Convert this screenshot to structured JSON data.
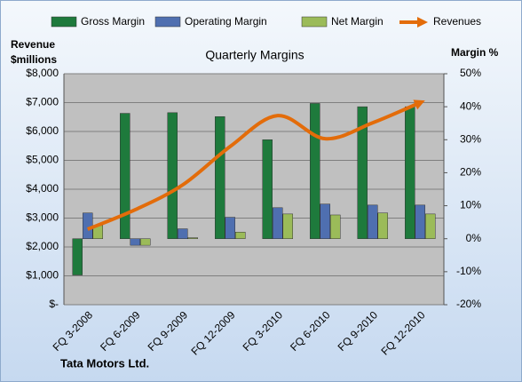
{
  "chart_data": {
    "type": "combo",
    "title": "Quarterly Margins",
    "ylabel": [
      "Revenue",
      "$millions"
    ],
    "y2label": "Margin %",
    "footnote": "Tata Motors Ltd.",
    "legend": "top",
    "grid": true,
    "categories": [
      "FQ 3-2008",
      "FQ 6-2009",
      "FQ 9-2009",
      "FQ 12-2009",
      "FQ 3-2010",
      "FQ 6-2010",
      "FQ 9-2010",
      "FQ 12-2010"
    ],
    "series": [
      {
        "name": "Gross Margin",
        "type": "bar",
        "axis": "y2",
        "color": "#1e7a3c",
        "values": [
          -11,
          38,
          38.2,
          37,
          30,
          41,
          40,
          40
        ]
      },
      {
        "name": "Operating Margin",
        "type": "bar",
        "axis": "y2",
        "color": "#4f6fb0",
        "values": [
          7.8,
          -2,
          3,
          6.5,
          9.4,
          10.5,
          10.2,
          10.2
        ]
      },
      {
        "name": "Net Margin",
        "type": "bar",
        "axis": "y2",
        "color": "#9bbb59",
        "values": [
          4,
          -2,
          0.3,
          2,
          7.5,
          7.2,
          7.8,
          7.5
        ]
      },
      {
        "name": "Revenues",
        "type": "line",
        "color": "#e36c0a",
        "values": [
          2615,
          3290,
          4150,
          5480,
          6550,
          5750,
          6300,
          7000
        ]
      }
    ],
    "ylim": [
      0,
      8000
    ],
    "yticks": [
      {
        "value": 0,
        "label": "$-"
      },
      {
        "value": 1000,
        "label": "$1,000"
      },
      {
        "value": 2000,
        "label": "$2,000"
      },
      {
        "value": 3000,
        "label": "$3,000"
      },
      {
        "value": 4000,
        "label": "$4,000"
      },
      {
        "value": 5000,
        "label": "$5,000"
      },
      {
        "value": 6000,
        "label": "$6,000"
      },
      {
        "value": 7000,
        "label": "$7,000"
      },
      {
        "value": 8000,
        "label": "$8,000"
      }
    ],
    "y2lim": [
      -20,
      50
    ],
    "y2ticks": [
      {
        "value": -20,
        "label": "-20%"
      },
      {
        "value": -10,
        "label": "-10%"
      },
      {
        "value": 0,
        "label": "0%"
      },
      {
        "value": 10,
        "label": "10%"
      },
      {
        "value": 20,
        "label": "20%"
      },
      {
        "value": 30,
        "label": "30%"
      },
      {
        "value": 40,
        "label": "40%"
      },
      {
        "value": 50,
        "label": "50%"
      }
    ]
  }
}
